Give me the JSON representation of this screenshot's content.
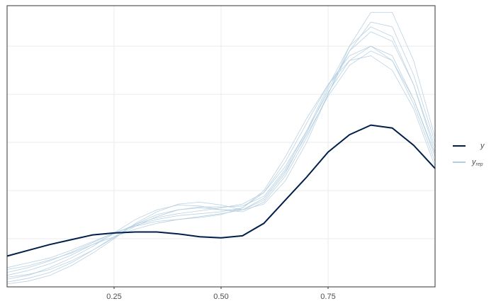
{
  "chart_data": {
    "type": "density_overlay",
    "x": [
      0,
      0.05,
      0.1,
      0.15,
      0.2,
      0.25,
      0.3,
      0.35,
      0.4,
      0.45,
      0.5,
      0.55,
      0.6,
      0.65,
      0.7,
      0.75,
      0.8,
      0.85,
      0.9,
      0.95,
      1
    ],
    "xlim": [
      0,
      1
    ],
    "xticks": [
      0.25,
      {
        "value": 0.5,
        "label": "0.50"
      },
      0.75
    ],
    "ylim": [
      0,
      2.92
    ],
    "yticks": [
      0.5,
      1,
      1.5,
      2,
      2.5
    ],
    "grid": true,
    "legend": "right",
    "series": [
      {
        "name": "y",
        "color": "#011f4b",
        "values": [
          0.32,
          0.38,
          0.44,
          0.49,
          0.54,
          0.56,
          0.57,
          0.57,
          0.55,
          0.52,
          0.51,
          0.53,
          0.66,
          0.9,
          1.14,
          1.4,
          1.58,
          1.68,
          1.65,
          1.47,
          1.23
        ]
      }
    ],
    "replicates": {
      "name": "y",
      "name_sub": "rep",
      "color": "#b3cde0",
      "draws": [
        [
          0.05,
          0.09,
          0.15,
          0.25,
          0.38,
          0.52,
          0.65,
          0.75,
          0.8,
          0.82,
          0.8,
          0.8,
          0.9,
          1.18,
          1.6,
          2.05,
          2.45,
          2.65,
          2.55,
          2.1,
          1.45
        ],
        [
          0.15,
          0.2,
          0.27,
          0.36,
          0.46,
          0.56,
          0.64,
          0.7,
          0.74,
          0.76,
          0.78,
          0.82,
          0.98,
          1.3,
          1.7,
          2.1,
          2.4,
          2.5,
          2.35,
          1.9,
          1.3
        ],
        [
          0.08,
          0.12,
          0.2,
          0.3,
          0.42,
          0.56,
          0.7,
          0.8,
          0.85,
          0.84,
          0.8,
          0.78,
          0.88,
          1.15,
          1.55,
          2.0,
          2.45,
          2.75,
          2.7,
          2.2,
          1.5
        ],
        [
          0.2,
          0.25,
          0.3,
          0.38,
          0.47,
          0.56,
          0.63,
          0.68,
          0.7,
          0.72,
          0.75,
          0.82,
          1.0,
          1.35,
          1.75,
          2.1,
          2.35,
          2.4,
          2.25,
          1.85,
          1.25
        ],
        [
          0.03,
          0.06,
          0.12,
          0.22,
          0.35,
          0.5,
          0.66,
          0.78,
          0.86,
          0.88,
          0.85,
          0.8,
          0.86,
          1.1,
          1.5,
          2.0,
          2.5,
          2.85,
          2.85,
          2.35,
          1.55
        ],
        [
          0.12,
          0.17,
          0.24,
          0.33,
          0.44,
          0.55,
          0.65,
          0.72,
          0.76,
          0.79,
          0.82,
          0.86,
          0.98,
          1.25,
          1.62,
          2.02,
          2.35,
          2.5,
          2.4,
          1.95,
          1.35
        ],
        [
          0.1,
          0.13,
          0.18,
          0.27,
          0.38,
          0.51,
          0.63,
          0.73,
          0.8,
          0.83,
          0.83,
          0.84,
          0.94,
          1.22,
          1.62,
          2.08,
          2.5,
          2.7,
          2.6,
          2.1,
          1.4
        ],
        [
          0.18,
          0.22,
          0.28,
          0.35,
          0.44,
          0.52,
          0.6,
          0.66,
          0.7,
          0.73,
          0.76,
          0.8,
          0.92,
          1.2,
          1.58,
          1.98,
          2.3,
          2.45,
          2.35,
          1.95,
          1.38
        ]
      ]
    }
  }
}
